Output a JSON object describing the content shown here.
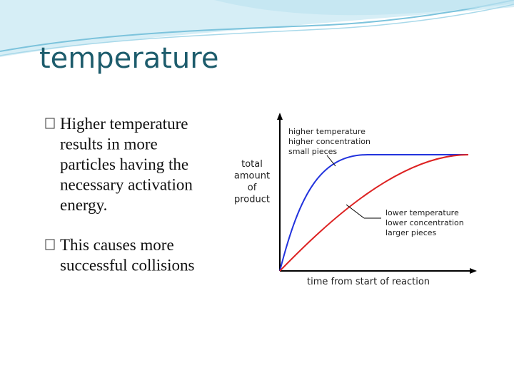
{
  "header": {
    "title": "temperature"
  },
  "bullets": [
    {
      "lines": [
        "Higher temperature",
        "results in more",
        "particles having the",
        "necessary activation",
        "energy."
      ]
    },
    {
      "lines": [
        "This causes more",
        "successful collisions"
      ]
    }
  ],
  "figure": {
    "y_axis_label_lines": [
      "total",
      "amount",
      "of",
      "product"
    ],
    "x_axis_label": "time from start of reaction",
    "upper_label_lines": [
      "higher temperature",
      "higher concentration",
      "small pieces"
    ],
    "lower_label_lines": [
      "lower temperature",
      "lower concentration",
      "larger pieces"
    ]
  }
}
